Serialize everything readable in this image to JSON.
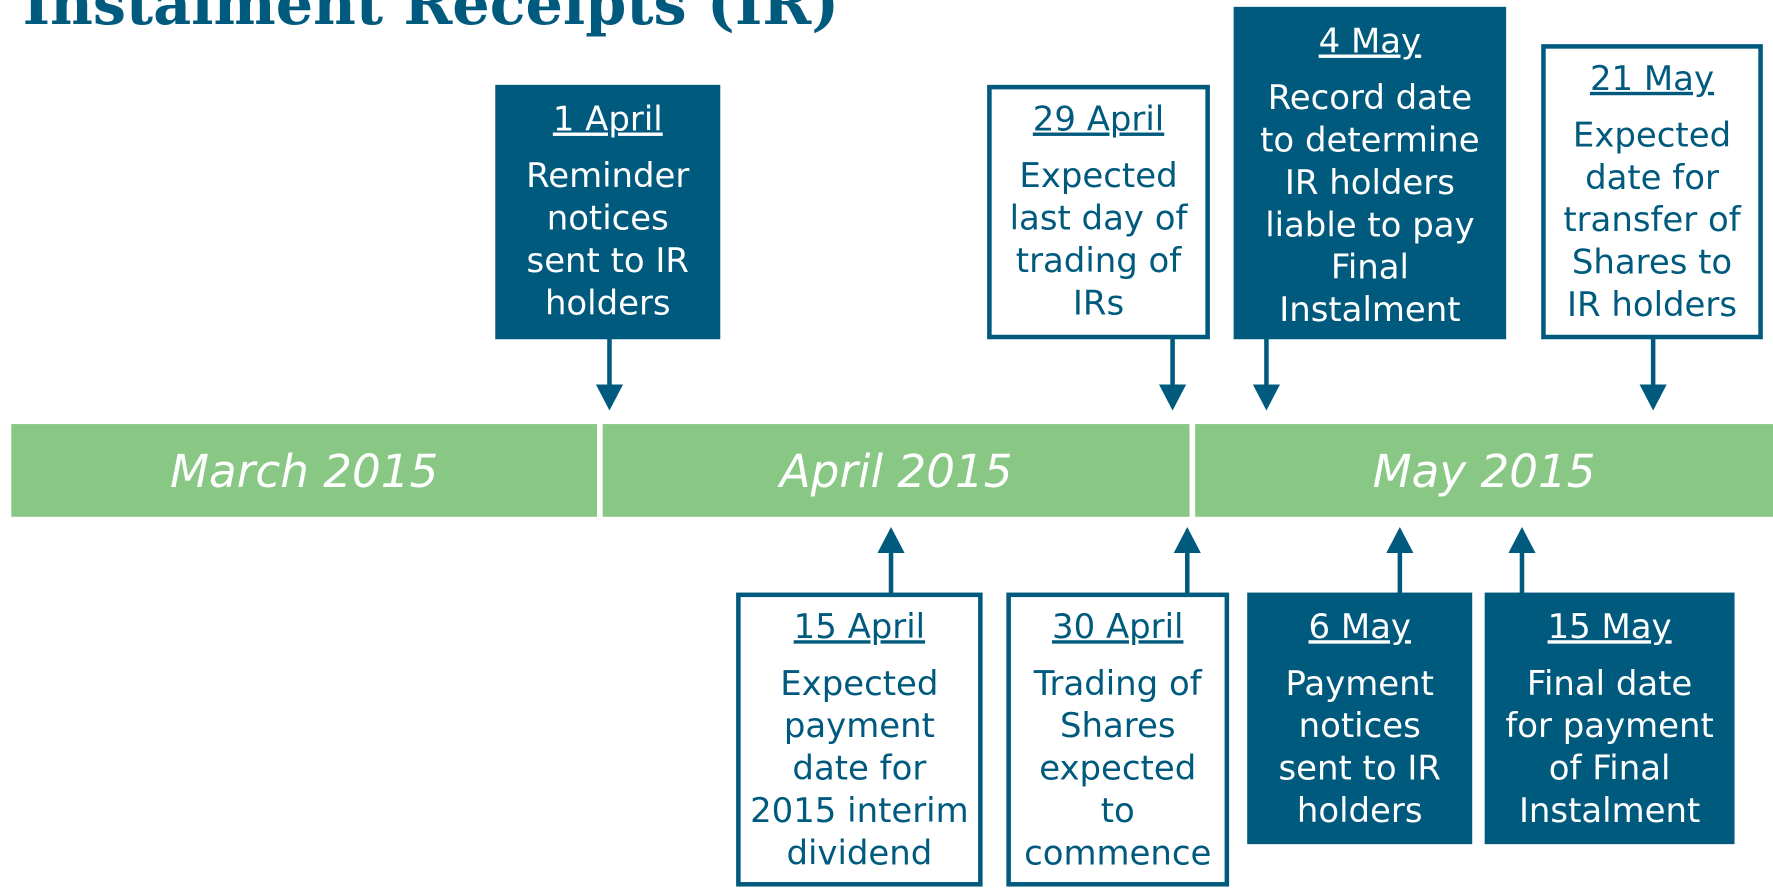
{
  "title": "Instalment Receipts (IR)",
  "months": [
    "March 2015",
    "April 2015",
    "May 2015"
  ],
  "events_above": [
    {
      "date": "1 April",
      "lines": [
        "Reminder",
        "notices",
        "sent to IR",
        "holders"
      ]
    },
    {
      "date": "29 April",
      "lines": [
        "Expected",
        "last day of",
        "trading of",
        "IRs"
      ]
    },
    {
      "date": "4 May",
      "lines": [
        "Record date",
        "to determine",
        "IR holders",
        "liable to pay",
        "Final",
        "Instalment"
      ]
    },
    {
      "date": "21 May",
      "lines": [
        "Expected",
        "date for",
        "transfer of",
        "Shares to",
        "IR holders"
      ]
    }
  ],
  "events_below": [
    {
      "date": "15 April",
      "lines": [
        "Expected",
        "payment",
        "date for",
        "2015 interim",
        "dividend"
      ]
    },
    {
      "date": "30 April",
      "lines": [
        "Trading of",
        "Shares",
        "expected",
        "to",
        "commence"
      ]
    },
    {
      "date": "6 May",
      "lines": [
        "Payment",
        "notices",
        "sent to IR",
        "holders"
      ]
    },
    {
      "date": "15 May",
      "lines": [
        "Final date",
        "for payment",
        "of Final",
        "Instalment"
      ]
    }
  ]
}
